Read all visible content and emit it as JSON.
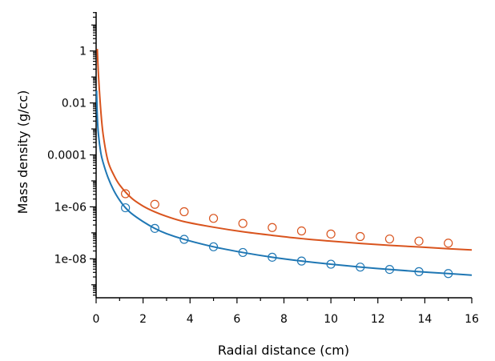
{
  "chart_data": {
    "type": "scatter",
    "xlabel": "Radial distance (cm)",
    "ylabel": "Mass density (g/cc)",
    "xlim": [
      0,
      16
    ],
    "ylim_log10": [
      -9.5,
      1.5
    ],
    "y_scale": "log",
    "x_ticks": [
      0,
      2,
      4,
      6,
      8,
      10,
      12,
      14,
      16
    ],
    "y_ticks": [
      {
        "value": 1,
        "label": "1"
      },
      {
        "value": 0.01,
        "label": "0.01"
      },
      {
        "value": 0.0001,
        "label": "0.0001"
      },
      {
        "value": 1e-06,
        "label": "1e-06"
      },
      {
        "value": 1e-08,
        "label": "1e-08"
      }
    ],
    "grid": false,
    "series": [
      {
        "color": "#d9541e",
        "curve_points": [
          [
            0.05,
            1.2
          ],
          [
            0.1,
            0.12
          ],
          [
            0.2,
            0.005
          ],
          [
            0.3,
            0.0006
          ],
          [
            0.5,
            6e-05
          ],
          [
            0.75,
            1.7e-05
          ],
          [
            1,
            7e-06
          ],
          [
            1.5,
            2.2e-06
          ],
          [
            2,
            1.07e-06
          ],
          [
            2.5,
            6.4e-07
          ],
          [
            3,
            4.3e-07
          ],
          [
            3.75,
            2.7e-07
          ],
          [
            5,
            1.65e-07
          ],
          [
            6.25,
            1.1e-07
          ],
          [
            7.5,
            8e-08
          ],
          [
            8.75,
            6e-08
          ],
          [
            10,
            4.8e-08
          ],
          [
            11.25,
            3.9e-08
          ],
          [
            12.5,
            3.3e-08
          ],
          [
            13.75,
            2.85e-08
          ],
          [
            15,
            2.45e-08
          ],
          [
            16,
            2.2e-08
          ]
        ],
        "markers": [
          [
            1.25,
            3.2e-06
          ],
          [
            2.5,
            1.25e-06
          ],
          [
            3.75,
            6.5e-07
          ],
          [
            5,
            3.6e-07
          ],
          [
            6.25,
            2.3e-07
          ],
          [
            7.5,
            1.6e-07
          ],
          [
            8.75,
            1.18e-07
          ],
          [
            10,
            9e-08
          ],
          [
            11.25,
            7.2e-08
          ],
          [
            12.5,
            5.8e-08
          ],
          [
            13.75,
            4.8e-08
          ],
          [
            15,
            4e-08
          ]
        ]
      },
      {
        "color": "#1f77b4",
        "curve_points": [
          [
            0.02,
            0.03
          ],
          [
            0.05,
            0.003
          ],
          [
            0.1,
            0.0006
          ],
          [
            0.2,
            0.00012
          ],
          [
            0.3,
            5e-05
          ],
          [
            0.5,
            1.4e-05
          ],
          [
            0.75,
            4.3e-06
          ],
          [
            1,
            1.8e-06
          ],
          [
            1.25,
            9.2e-07
          ],
          [
            1.5,
            5.6e-07
          ],
          [
            2,
            2.7e-07
          ],
          [
            2.5,
            1.48e-07
          ],
          [
            3,
            9.3e-08
          ],
          [
            3.75,
            5.6e-08
          ],
          [
            5,
            2.9e-08
          ],
          [
            6.25,
            1.75e-08
          ],
          [
            7.5,
            1.15e-08
          ],
          [
            8.75,
            8.2e-09
          ],
          [
            10,
            6.2e-09
          ],
          [
            11.25,
            4.8e-09
          ],
          [
            12.5,
            3.9e-09
          ],
          [
            13.75,
            3.2e-09
          ],
          [
            15,
            2.7e-09
          ],
          [
            16,
            2.35e-09
          ]
        ],
        "markers": [
          [
            1.25,
            9.2e-07
          ],
          [
            2.5,
            1.48e-07
          ],
          [
            3.75,
            5.6e-08
          ],
          [
            5,
            2.9e-08
          ],
          [
            6.25,
            1.75e-08
          ],
          [
            7.5,
            1.15e-08
          ],
          [
            8.75,
            8.2e-09
          ],
          [
            10,
            6.2e-09
          ],
          [
            11.25,
            4.8e-09
          ],
          [
            12.5,
            3.9e-09
          ],
          [
            13.75,
            3.2e-09
          ],
          [
            15,
            2.7e-09
          ]
        ]
      }
    ]
  }
}
